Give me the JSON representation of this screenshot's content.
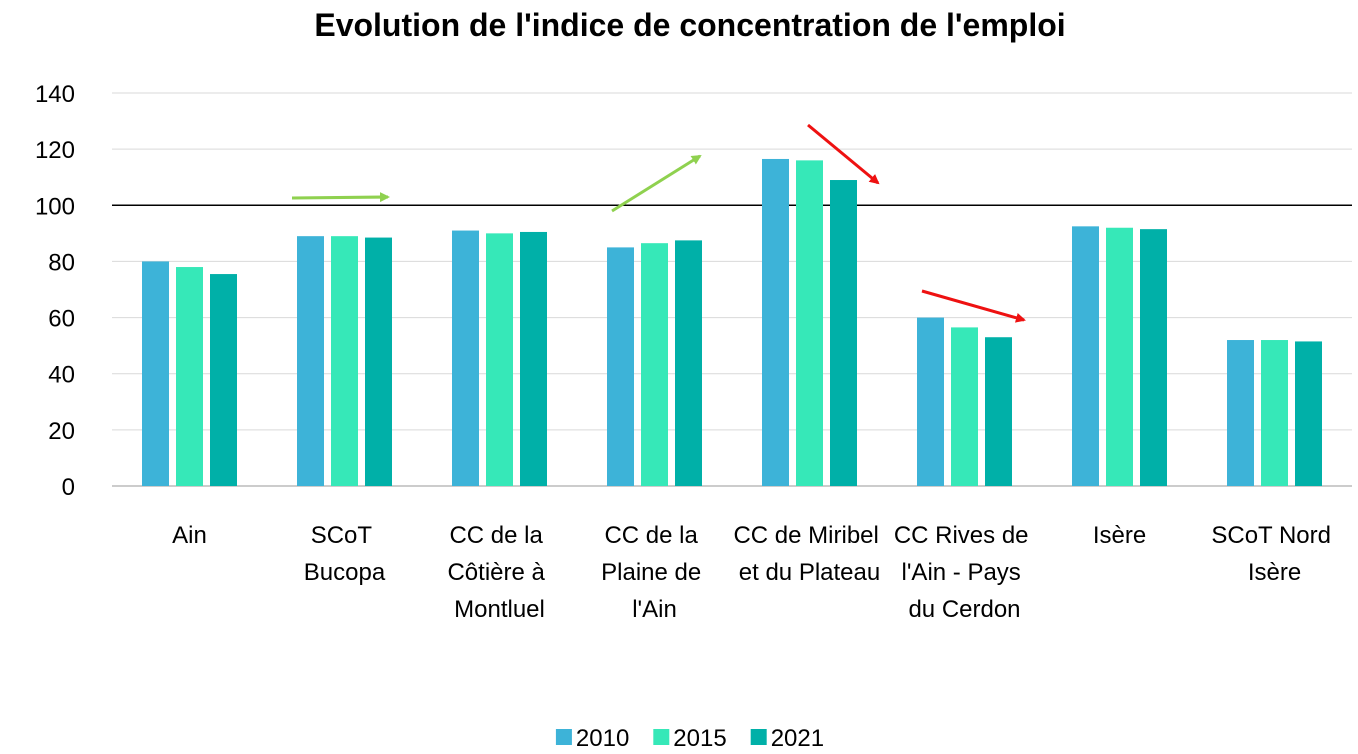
{
  "chart_data": {
    "type": "bar",
    "title": "Evolution de l'indice de concentration de l'emploi",
    "categories": [
      "Ain",
      "SCoT Bucopa",
      "CC de la Côtière à Montluel",
      "CC de la Plaine de l'Ain",
      "CC de Miribel et du Plateau",
      "CC Rives de l'Ain - Pays du Cerdon",
      "Isère",
      "SCoT Nord Isère"
    ],
    "series": [
      {
        "name": "2010",
        "color": "#3db3d8",
        "values": [
          80,
          89,
          91,
          85,
          116.5,
          60,
          92.5,
          52
        ]
      },
      {
        "name": "2015",
        "color": "#36e8b8",
        "values": [
          78,
          89,
          90,
          86.5,
          116,
          56.5,
          92,
          52
        ]
      },
      {
        "name": "2021",
        "color": "#00b0a8",
        "values": [
          75.5,
          88.5,
          90.5,
          87.5,
          109,
          53,
          91.5,
          51.5
        ]
      }
    ],
    "ylim": [
      0,
      140
    ],
    "yticks": [
      0,
      20,
      40,
      60,
      80,
      100,
      120,
      140
    ],
    "reference_line": 100,
    "grid": true,
    "legend": "bottom"
  }
}
